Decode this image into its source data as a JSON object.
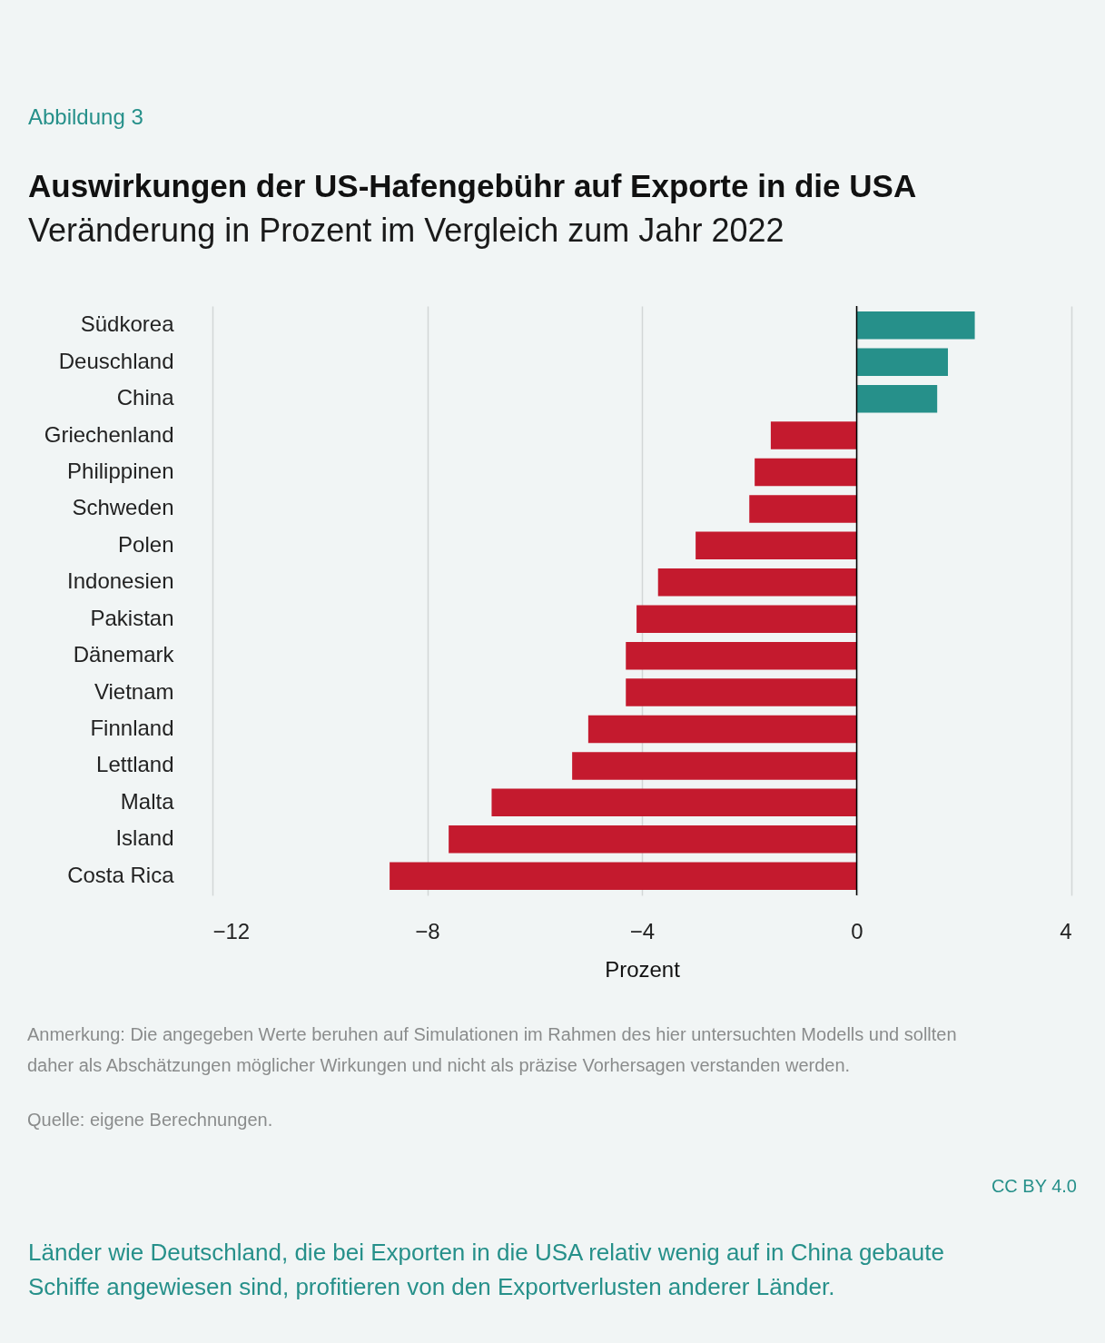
{
  "chart_data": {
    "type": "bar",
    "orientation": "horizontal",
    "title": "Auswirkungen der US-Hafengebühr auf Exporte in die USA",
    "subtitle": "Veränderung in Prozent im Vergleich zum Jahr 2022",
    "xlabel": "Prozent",
    "categories": [
      "Südkorea",
      "Deuschland",
      "China",
      "Griechenland",
      "Philippinen",
      "Schweden",
      "Polen",
      "Indonesien",
      "Pakistan",
      "Dänemark",
      "Vietnam",
      "Finnland",
      "Lettland",
      "Malta",
      "Island",
      "Costa Rica"
    ],
    "values": [
      2.2,
      1.7,
      1.5,
      -1.6,
      -1.9,
      -2.0,
      -3.0,
      -3.7,
      -4.1,
      -4.3,
      -4.3,
      -5.0,
      -5.3,
      -6.8,
      -7.6,
      -8.7
    ],
    "colors": [
      "#26908a",
      "#26908a",
      "#26908a",
      "#c41a2e",
      "#c41a2e",
      "#c41a2e",
      "#c41a2e",
      "#c41a2e",
      "#c41a2e",
      "#c41a2e",
      "#c41a2e",
      "#c41a2e",
      "#c41a2e",
      "#c41a2e",
      "#c41a2e",
      "#c41a2e"
    ],
    "xlim": [
      -12,
      4
    ],
    "xticks": [
      -12,
      -8,
      -4,
      0,
      4
    ],
    "grid": "x",
    "ref_lines": [
      {
        "axis": "x",
        "value": 0,
        "color": "#000000"
      }
    ],
    "annotations": [
      "Abbildung 3",
      "Anmerkung: Die angegeben Werte beruhen auf Simulationen im Rahmen des hier untersuchten Modells und sollten daher als Abschätzungen möglicher Wirkungen und nicht als präzise Vorhersagen verstanden werden.",
      "Quelle: eigene Berechnungen.",
      "CC BY 4.0",
      "Länder wie Deutschland, die bei Exporten in die USA relativ wenig auf in China gebaute Schiffe angewiesen sind, profitieren von den Exportverlusten anderer Länder."
    ]
  }
}
